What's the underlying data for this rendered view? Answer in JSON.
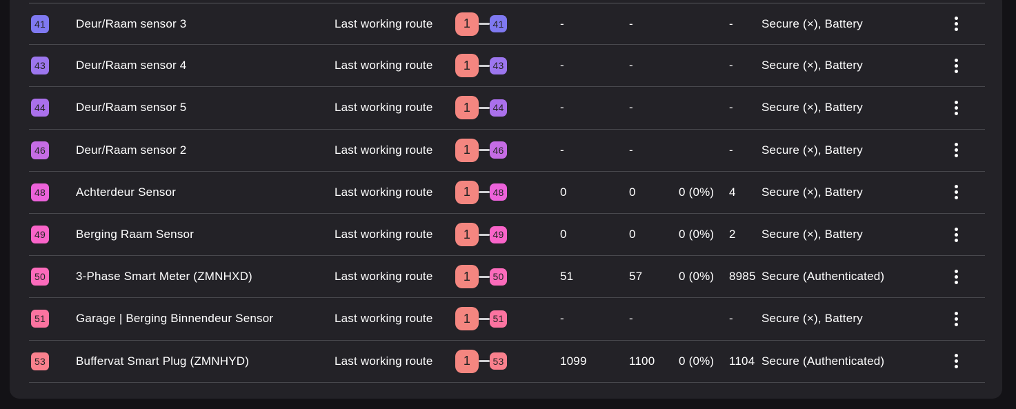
{
  "colors": {
    "background": "#131216",
    "card": "#232227",
    "separator": "#48484d",
    "separator_top": "#58585d",
    "text": "#ffffff",
    "badge_text": "#242424",
    "connector": "#cfcfd3",
    "controller_badge": "#f48680"
  },
  "table": {
    "route_type_label": "Last working route",
    "controller": {
      "id": "1",
      "color": "#f48680"
    },
    "rows": [
      {
        "id": "41",
        "color": "#7f79f1",
        "name": "Deur/Raam sensor 3",
        "stat1": "-",
        "stat2": "-",
        "stat3": "",
        "stat4": "-",
        "security": "Secure (×), Battery"
      },
      {
        "id": "43",
        "color": "#9c76ee",
        "name": "Deur/Raam sensor 4",
        "stat1": "-",
        "stat2": "-",
        "stat3": "",
        "stat4": "-",
        "security": "Secure (×), Battery"
      },
      {
        "id": "44",
        "color": "#aa70eb",
        "name": "Deur/Raam sensor 5",
        "stat1": "-",
        "stat2": "-",
        "stat3": "",
        "stat4": "-",
        "security": "Secure (×), Battery"
      },
      {
        "id": "46",
        "color": "#c56ce4",
        "name": "Deur/Raam sensor 2",
        "stat1": "-",
        "stat2": "-",
        "stat3": "",
        "stat4": "-",
        "security": "Secure (×), Battery"
      },
      {
        "id": "48",
        "color": "#ec62da",
        "name": "Achterdeur Sensor",
        "stat1": "0",
        "stat2": "0",
        "stat3": "0 (0%)",
        "stat4": "4",
        "security": "Secure (×), Battery"
      },
      {
        "id": "49",
        "color": "#f964c9",
        "name": "Berging Raam Sensor",
        "stat1": "0",
        "stat2": "0",
        "stat3": "0 (0%)",
        "stat4": "2",
        "security": "Secure (×), Battery"
      },
      {
        "id": "50",
        "color": "#fb6bbb",
        "name": "3-Phase Smart Meter (ZMNHXD)",
        "stat1": "51",
        "stat2": "57",
        "stat3": "0 (0%)",
        "stat4": "8985",
        "security": "Secure (Authenticated)"
      },
      {
        "id": "51",
        "color": "#fb73a0",
        "name": "Garage | Berging Binnendeur Sensor",
        "stat1": "-",
        "stat2": "-",
        "stat3": "",
        "stat4": "-",
        "security": "Secure (×), Battery"
      },
      {
        "id": "53",
        "color": "#f9808d",
        "name": "Buffervat Smart Plug (ZMNHYD)",
        "stat1": "1099",
        "stat2": "1100",
        "stat3": "0 (0%)",
        "stat4": "1104",
        "security": "Secure (Authenticated)"
      }
    ]
  }
}
